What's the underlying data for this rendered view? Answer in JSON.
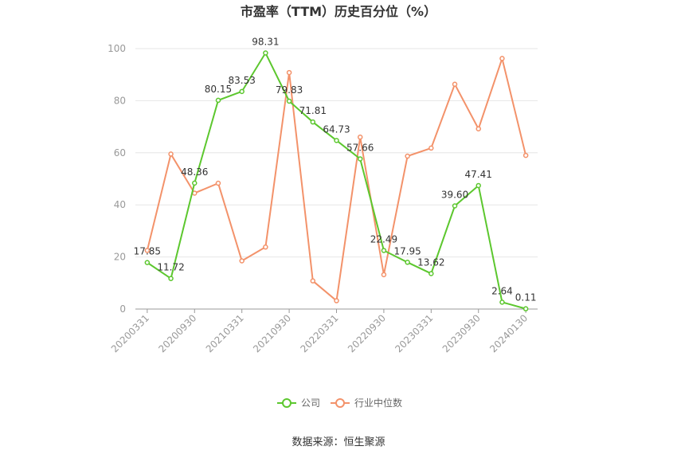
{
  "chart_data": {
    "type": "line",
    "title": "市盈率（TTM）历史百分位（%）",
    "x_tick_labels": [
      "20200331",
      "20200930",
      "20210331",
      "20210930",
      "20220331",
      "20220930",
      "20230331",
      "20230930",
      "20240130"
    ],
    "ylim": [
      0,
      100
    ],
    "yticks": [
      0,
      20,
      40,
      60,
      80,
      100
    ],
    "grid": true,
    "legend_position": "bottom",
    "series": [
      {
        "name": "公司",
        "color": "#5cc72e",
        "values": [
          17.85,
          11.72,
          48.36,
          80.15,
          83.53,
          98.31,
          79.83,
          71.81,
          64.73,
          57.66,
          22.49,
          17.95,
          13.62,
          39.6,
          47.41,
          2.64,
          0.11
        ],
        "labels": [
          "17.85",
          "11.72",
          "48.36",
          "80.15",
          "83.53",
          "98.31",
          "79.83",
          "71.81",
          "64.73",
          "57.66",
          "22.49",
          "17.95",
          "13.62",
          "39.60",
          "47.41",
          "2.64",
          "0.11"
        ]
      },
      {
        "name": "行业中位数",
        "color": "#f3926a",
        "values": [
          22.5,
          59.5,
          44.5,
          48.3,
          18.5,
          23.8,
          90.8,
          10.8,
          3.2,
          66.0,
          13.2,
          58.7,
          61.8,
          86.3,
          69.2,
          96.2,
          59.0
        ]
      }
    ]
  },
  "source": "数据来源：恒生聚源"
}
